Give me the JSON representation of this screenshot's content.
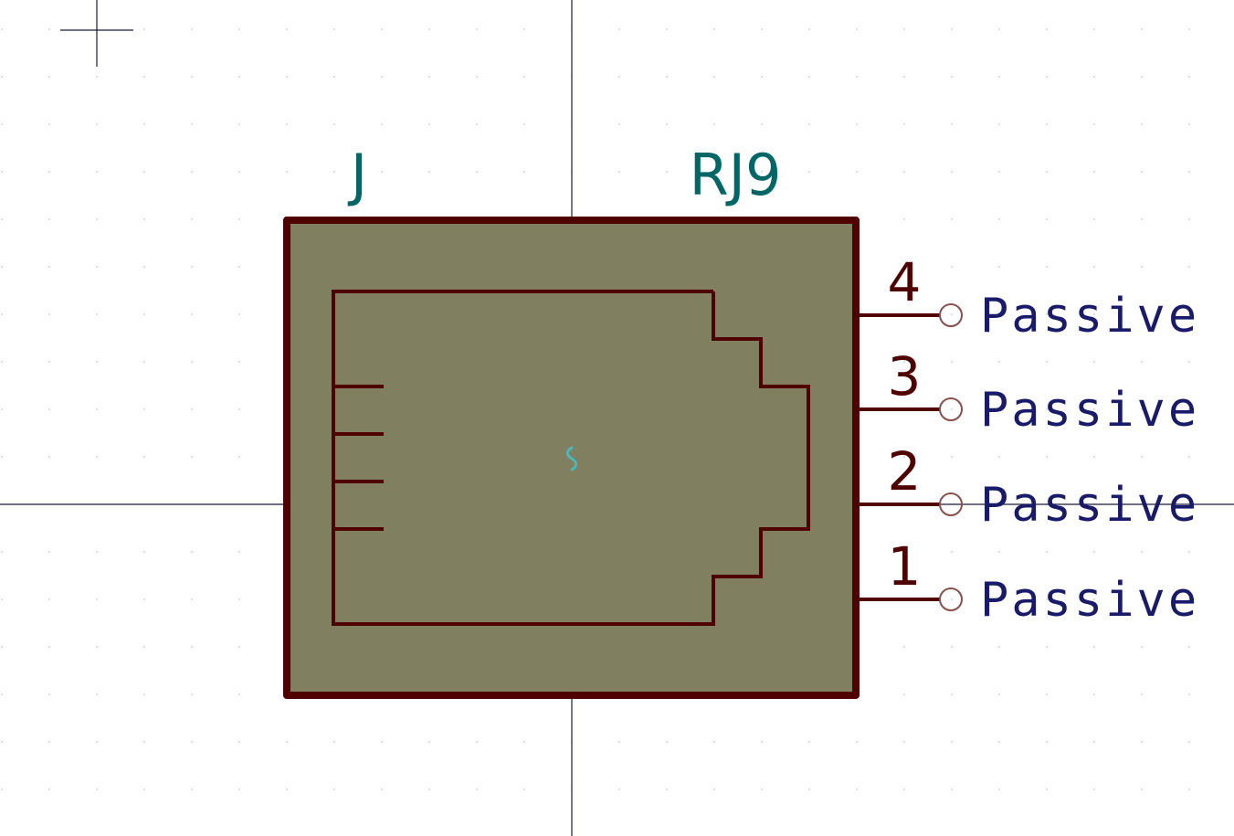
{
  "symbol": {
    "reference": "J",
    "value": "RJ9",
    "body_fill_color": "#807f60",
    "outline_color": "#4f0000",
    "text_color": "#006666",
    "pin_type_color": "#1a1a6b",
    "anchor_marker_color": "#48b8c0"
  },
  "pins": [
    {
      "number": "4",
      "type": "Passive"
    },
    {
      "number": "3",
      "type": "Passive"
    },
    {
      "number": "2",
      "type": "Passive"
    },
    {
      "number": "1",
      "type": "Passive"
    }
  ]
}
